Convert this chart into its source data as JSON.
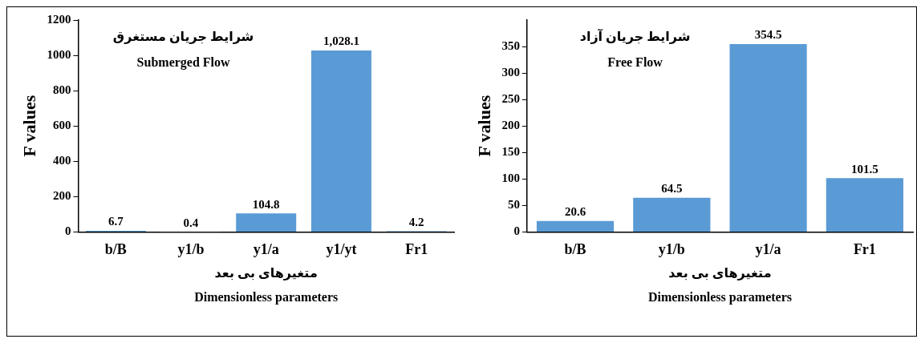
{
  "chart_data": [
    {
      "type": "bar",
      "title": "شرایط جریان مستغرق",
      "subtitle": "Submerged Flow",
      "xlabel": "Dimensionless parameters",
      "ylabel": "F values",
      "annotations": [
        "متغیرهای بی بعد"
      ],
      "categories": [
        "b/B",
        "y1/b",
        "y1/a",
        "y1/yt",
        "Fr1"
      ],
      "values": [
        6.7,
        0.4,
        104.8,
        1028.1,
        4.2
      ],
      "value_labels": [
        "6.7",
        "0.4",
        "104.8",
        "1,028.1",
        "4.2"
      ],
      "color": "#5b9bd5",
      "ylim": [
        0,
        1200
      ],
      "yticks": [
        0,
        200,
        400,
        600,
        800,
        1000,
        1200
      ],
      "grid": false
    },
    {
      "type": "bar",
      "title": "شرایط جریان آزاد",
      "subtitle": "Free Flow",
      "xlabel": "Dimensionless parameters",
      "ylabel": "F values",
      "annotations": [
        "متغیرهای بی بعد"
      ],
      "categories": [
        "b/B",
        "y1/b",
        "y1/a",
        "Fr1"
      ],
      "values": [
        20.6,
        64.5,
        354.5,
        101.5
      ],
      "data_labels": true,
      "color": "#5b9bd5",
      "ylim": [
        0,
        400
      ],
      "yticks": [
        0,
        50,
        100,
        150,
        200,
        250,
        300,
        350
      ],
      "grid": false
    }
  ]
}
